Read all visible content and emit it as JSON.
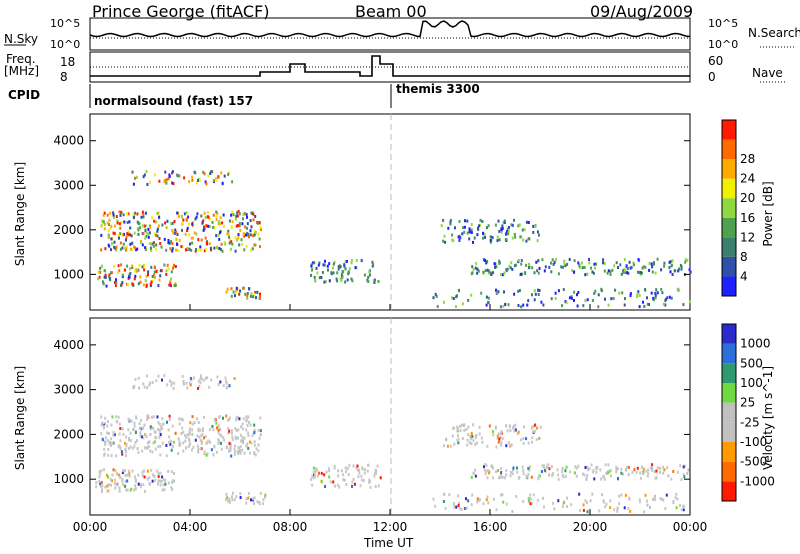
{
  "header": {
    "station": "Prince George (fitACF)",
    "beam": "Beam 00",
    "date": "09/Aug/2009"
  },
  "summary_panel": {
    "nsky_label": "N.Sky",
    "nsearch_label": "N.Search",
    "left_ticks": [
      "10^5",
      "10^0"
    ],
    "right_ticks": [
      "10^5",
      "10^0"
    ],
    "freq_label": "Freq.",
    "freq_unit": "[MHz]",
    "freq_ticks": [
      "18",
      "8"
    ],
    "nave_label": "Nave",
    "nave_ticks": [
      "60",
      "0"
    ],
    "cpid_label": "CPID",
    "cpid_segments": [
      "normalsound (fast) 157",
      "themis 3300"
    ]
  },
  "colors": {
    "power_scale": [
      "#1f1fff",
      "#2f4fa8",
      "#3b7f6f",
      "#4fa04f",
      "#8fd93f",
      "#f0f000",
      "#ffaa00",
      "#ff6a00",
      "#ff1a00"
    ],
    "velocity_scale": [
      "#2b2bcc",
      "#2b6fd9",
      "#2f9a6f",
      "#6fd93f",
      "#c0c0c0",
      "#c0c0c0",
      "#ff9a00",
      "#ff6a00",
      "#ff1a00"
    ],
    "gray": "#c8c8c8"
  },
  "chart_data": [
    {
      "type": "heatmap",
      "title": "Power",
      "ylabel": "Slant Range [km]",
      "xlabel": "",
      "x_ticks": [
        "00:00",
        "04:00",
        "08:00",
        "12:00",
        "16:00",
        "20:00",
        "00:00"
      ],
      "y_ticks": [
        1000,
        2000,
        3000,
        4000
      ],
      "ylim": [
        200,
        4600
      ],
      "colorbar_label": "Power [dB]",
      "colorbar_ticks": [
        4,
        8,
        12,
        16,
        20,
        24,
        28
      ]
    },
    {
      "type": "heatmap",
      "title": "Velocity",
      "ylabel": "Slant Range [km]",
      "xlabel": "Time UT",
      "x_ticks": [
        "00:00",
        "04:00",
        "08:00",
        "12:00",
        "16:00",
        "20:00",
        "00:00"
      ],
      "y_ticks": [
        1000,
        2000,
        3000,
        4000
      ],
      "ylim": [
        200,
        4600
      ],
      "colorbar_label": "Velocity [m s^-1]",
      "colorbar_ticks": [
        1000,
        500,
        100,
        25,
        -25,
        -100,
        -500,
        -1000
      ]
    }
  ]
}
